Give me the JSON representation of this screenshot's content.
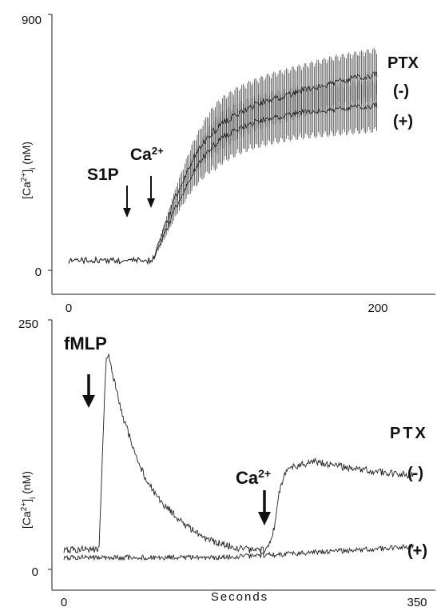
{
  "chart_data": [
    {
      "type": "line",
      "ylabel": "[Ca2+]i (nM)",
      "ylim": [
        0,
        900
      ],
      "xlim": [
        0,
        225
      ],
      "y_ticks": [
        "0",
        "900"
      ],
      "x_ticks": [
        "0",
        "200"
      ],
      "grid": false,
      "error_bars": true,
      "annotations": [
        {
          "text": "S1P",
          "x": 38
        },
        {
          "text": "Ca2+",
          "x": 53
        }
      ],
      "legend": {
        "title": "PTX",
        "labels": [
          "(-)",
          "(+)"
        ],
        "placement": "right"
      },
      "series": [
        {
          "name": "(-)",
          "x": [
            0,
            20,
            40,
            52,
            55,
            60,
            70,
            80,
            90,
            100,
            110,
            120,
            130,
            140,
            150,
            160,
            170,
            180,
            190,
            200
          ],
          "y": [
            35,
            35,
            33,
            35,
            45,
            120,
            270,
            390,
            470,
            520,
            555,
            580,
            600,
            615,
            630,
            645,
            660,
            670,
            680,
            690
          ]
        },
        {
          "name": "(+)",
          "x": [
            0,
            20,
            40,
            52,
            55,
            60,
            70,
            80,
            90,
            100,
            110,
            120,
            130,
            140,
            150,
            160,
            170,
            180,
            190,
            200
          ],
          "y": [
            35,
            35,
            33,
            35,
            42,
            100,
            230,
            340,
            420,
            470,
            500,
            520,
            535,
            545,
            555,
            560,
            565,
            570,
            575,
            580
          ]
        }
      ]
    },
    {
      "type": "line",
      "ylabel": "[Ca2+]i (nM)",
      "xlabel": "Seconds",
      "ylim": [
        0,
        250
      ],
      "xlim": [
        0,
        360
      ],
      "y_ticks": [
        "0",
        "250"
      ],
      "x_ticks": [
        "0",
        "350"
      ],
      "grid": false,
      "annotations": [
        {
          "text": "fMLP",
          "x": 30
        },
        {
          "text": "Ca2+",
          "x": 205
        }
      ],
      "legend": {
        "title": "PTX",
        "labels": [
          "(-)",
          "(+)"
        ],
        "placement": "right"
      },
      "series": [
        {
          "name": "(-)",
          "x": [
            0,
            20,
            35,
            38,
            42,
            45,
            50,
            60,
            70,
            80,
            90,
            100,
            120,
            140,
            160,
            180,
            200,
            205,
            210,
            215,
            220,
            230,
            250,
            270,
            300,
            330,
            350
          ],
          "y": [
            20,
            20,
            20,
            100,
            210,
            215,
            190,
            150,
            120,
            95,
            78,
            65,
            45,
            32,
            25,
            20,
            19,
            22,
            40,
            75,
            95,
            103,
            108,
            104,
            100,
            96,
            94
          ]
        },
        {
          "name": "(+)",
          "x": [
            0,
            50,
            100,
            150,
            200,
            250,
            300,
            350
          ],
          "y": [
            12,
            12,
            12,
            12,
            14,
            17,
            20,
            23
          ]
        }
      ]
    }
  ]
}
